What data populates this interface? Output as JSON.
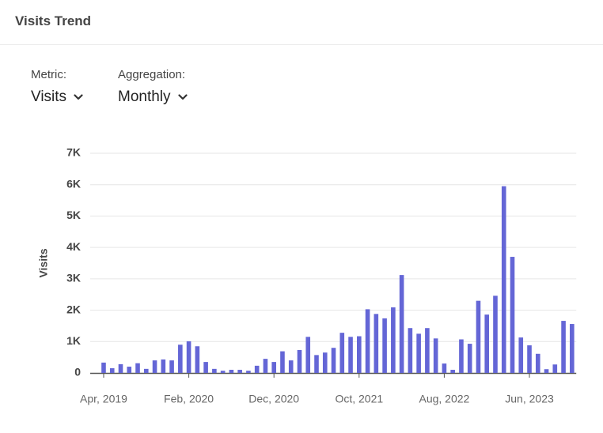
{
  "header": {
    "title": "Visits Trend"
  },
  "controls": [
    {
      "label": "Metric:",
      "value": "Visits"
    },
    {
      "label": "Aggregation:",
      "value": "Monthly"
    }
  ],
  "chart_data": {
    "type": "bar",
    "y_label": "Visits",
    "color": "#6466d6",
    "grid": true,
    "categories": [
      "Apr, 2019",
      null,
      null,
      null,
      null,
      null,
      null,
      null,
      null,
      null,
      "Feb, 2020",
      null,
      null,
      null,
      null,
      null,
      null,
      null,
      null,
      null,
      "Dec, 2020",
      null,
      null,
      null,
      null,
      null,
      null,
      null,
      null,
      null,
      "Oct, 2021",
      null,
      null,
      null,
      null,
      null,
      null,
      null,
      null,
      null,
      "Aug, 2022",
      null,
      null,
      null,
      null,
      null,
      null,
      null,
      null,
      null,
      "Jun, 2023",
      null,
      null,
      null,
      null,
      null
    ],
    "values": [
      330,
      150,
      280,
      200,
      310,
      130,
      400,
      430,
      400,
      900,
      1010,
      850,
      350,
      130,
      70,
      100,
      100,
      70,
      230,
      450,
      350,
      690,
      400,
      730,
      1150,
      570,
      650,
      800,
      1280,
      1150,
      1170,
      2030,
      1880,
      1740,
      2090,
      3120,
      1430,
      1250,
      1430,
      1100,
      300,
      100,
      1070,
      930,
      2300,
      1860,
      2460,
      5950,
      3700,
      1130,
      880,
      610,
      120,
      270,
      1660,
      1560
    ],
    "ylim": [
      0,
      7000
    ],
    "yticks": [
      0,
      {
        "value": 1000,
        "label": "1K"
      },
      {
        "value": 2000,
        "label": "2K"
      },
      {
        "value": 3000,
        "label": "3K"
      },
      {
        "value": 4000,
        "label": "4K"
      },
      {
        "value": 5000,
        "label": "5K"
      },
      {
        "value": 6000,
        "label": "6K"
      },
      {
        "value": 7000,
        "label": "7K"
      }
    ]
  }
}
